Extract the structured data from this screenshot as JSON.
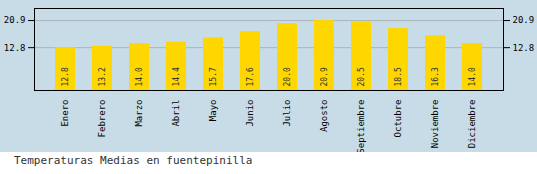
{
  "chart_data": {
    "type": "bar",
    "title": "Temperaturas Medias en fuentepinilla",
    "categories": [
      "Enero",
      "Febrero",
      "Marzo",
      "Abril",
      "Mayo",
      "Junio",
      "Julio",
      "Agosto",
      "Septiembre",
      "Octubre",
      "Noviembre",
      "Diciembre"
    ],
    "values": [
      12.8,
      13.2,
      14.0,
      14.4,
      15.7,
      17.6,
      20.0,
      20.9,
      20.5,
      18.5,
      16.3,
      14.0
    ],
    "value_labels": [
      "12.8",
      "13.2",
      "14.0",
      "14.4",
      "15.7",
      "17.6",
      "20.0",
      "20.9",
      "20.5",
      "18.5",
      "16.3",
      "14.0"
    ],
    "color": "#FFD700",
    "ylim": [
      0,
      24.5
    ],
    "yticks": [
      12.8,
      20.9
    ],
    "grid": true,
    "data_labels": true
  }
}
